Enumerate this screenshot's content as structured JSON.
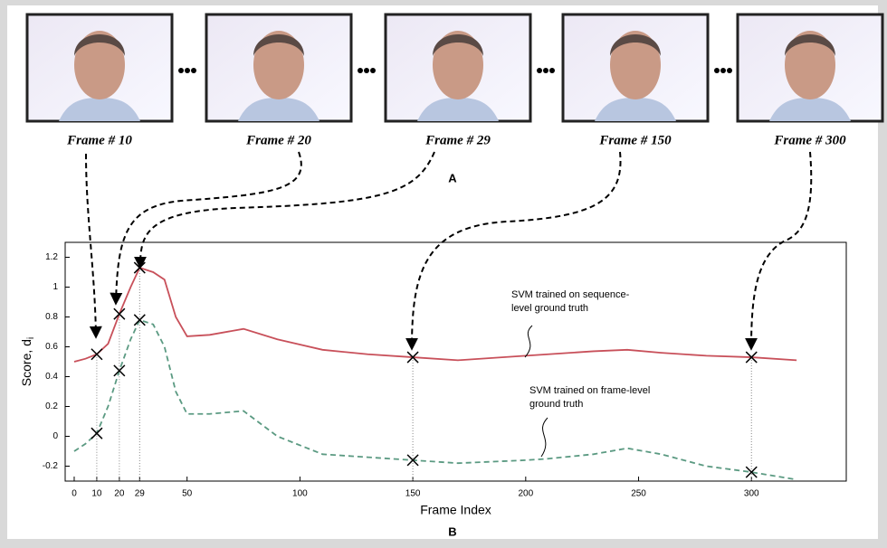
{
  "frames": [
    {
      "label": "Frame # 10"
    },
    {
      "label": "Frame # 20"
    },
    {
      "label": "Frame # 29"
    },
    {
      "label": "Frame # 150"
    },
    {
      "label": "Frame # 300"
    }
  ],
  "panel_labels": [
    "A",
    "B"
  ],
  "chart_data": {
    "type": "line",
    "x_label": "Frame Index",
    "y_label": "Score, d",
    "y_label_sub": "i",
    "xlim": [
      -4,
      342
    ],
    "ylim": [
      -0.3,
      1.3
    ],
    "xticks": [
      0,
      10,
      20,
      29,
      50,
      100,
      150,
      200,
      250,
      300
    ],
    "yticks": [
      -0.2,
      0,
      0.2,
      0.4,
      0.6,
      0.8,
      1,
      1.2
    ],
    "x": [
      0,
      5,
      10,
      15,
      20,
      25,
      29,
      35,
      40,
      45,
      50,
      60,
      75,
      90,
      110,
      130,
      150,
      170,
      200,
      210,
      230,
      245,
      260,
      280,
      300,
      320
    ],
    "marked_x": [
      10,
      20,
      29,
      150,
      300
    ],
    "series": [
      {
        "name": "SVM trained on sequence-level ground truth",
        "color": "#c8505a",
        "dashed": false,
        "values": [
          0.5,
          0.52,
          0.55,
          0.62,
          0.82,
          1.0,
          1.13,
          1.1,
          1.05,
          0.8,
          0.67,
          0.68,
          0.72,
          0.65,
          0.58,
          0.55,
          0.53,
          0.51,
          0.54,
          0.55,
          0.57,
          0.58,
          0.56,
          0.54,
          0.53,
          0.51
        ]
      },
      {
        "name": "SVM trained on frame-level ground truth",
        "color": "#5b9a82",
        "dashed": true,
        "values": [
          -0.1,
          -0.05,
          0.02,
          0.2,
          0.44,
          0.65,
          0.78,
          0.75,
          0.6,
          0.3,
          0.15,
          0.15,
          0.17,
          0.0,
          -0.12,
          -0.14,
          -0.16,
          -0.18,
          -0.16,
          -0.15,
          -0.12,
          -0.08,
          -0.12,
          -0.2,
          -0.24,
          -0.29
        ]
      }
    ],
    "annotations": [
      [
        "SVM trained on sequence-",
        "level ground truth"
      ],
      [
        "SVM trained on frame-level",
        "ground truth"
      ]
    ]
  }
}
